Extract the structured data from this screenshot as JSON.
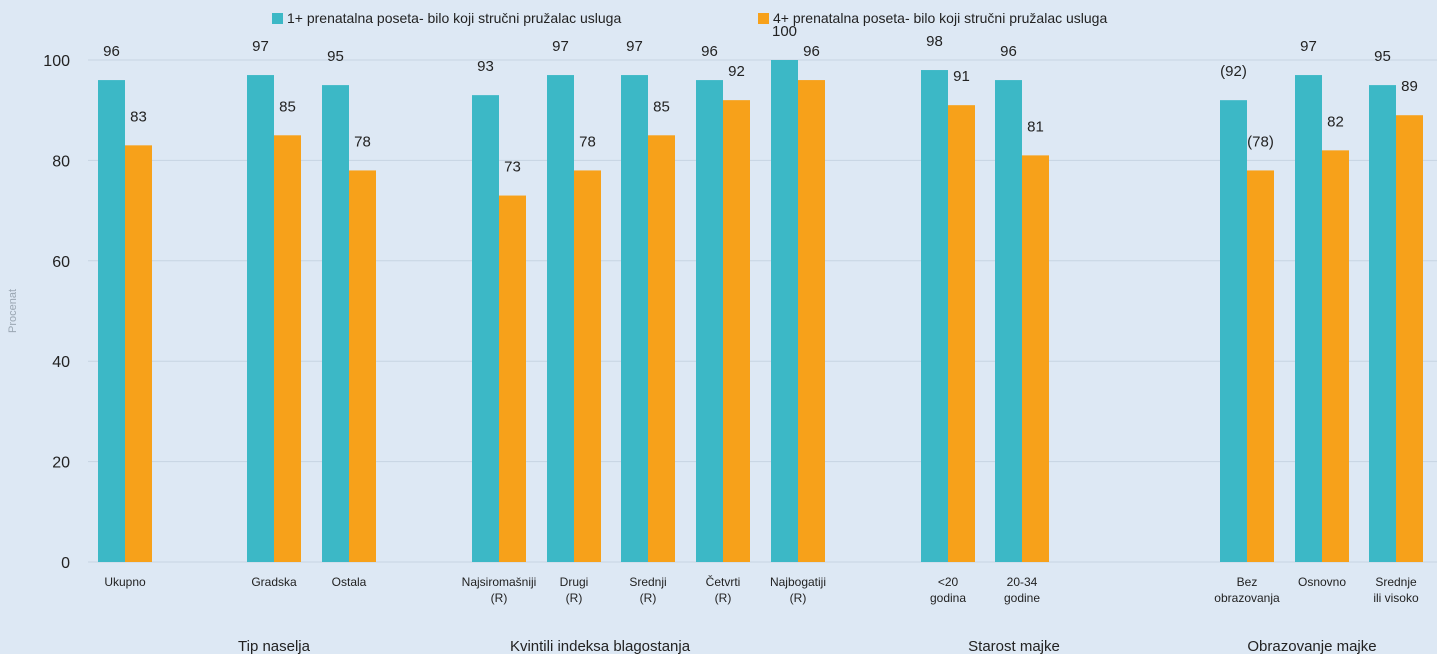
{
  "chart_data": {
    "type": "bar",
    "ylabel": "Procenat",
    "ylim": [
      0,
      100
    ],
    "yticks": [
      0,
      20,
      40,
      60,
      80,
      100
    ],
    "grid": true,
    "legend_position": "top",
    "colors": {
      "series1": "#3cb8c6",
      "series2": "#f7a11a",
      "grid": "#c6d4e2",
      "background": "#dde8f4"
    },
    "series": [
      {
        "name": "1+ prenatalna poseta- bilo koji stručni pružalac usluga"
      },
      {
        "name": "4+ prenatalna poseta- bilo koji stručni pružalac usluga"
      }
    ],
    "groups": [
      {
        "label": "",
        "categories": [
          {
            "label": [
              "Ukupno"
            ],
            "values": [
              96,
              83
            ],
            "labels": [
              "96",
              "83"
            ]
          }
        ]
      },
      {
        "label": "Tip naselja",
        "categories": [
          {
            "label": [
              "Gradska"
            ],
            "values": [
              97,
              85
            ],
            "labels": [
              "97",
              "85"
            ]
          },
          {
            "label": [
              "Ostala"
            ],
            "values": [
              95,
              78
            ],
            "labels": [
              "95",
              "78"
            ]
          }
        ]
      },
      {
        "label": "Kvintili indeksa blagostanja",
        "categories": [
          {
            "label": [
              "Najsiromašniji",
              "(R)"
            ],
            "values": [
              93,
              73
            ],
            "labels": [
              "93",
              "73"
            ]
          },
          {
            "label": [
              "Drugi",
              "(R)"
            ],
            "values": [
              97,
              78
            ],
            "labels": [
              "97",
              "78"
            ]
          },
          {
            "label": [
              "Srednji",
              "(R)"
            ],
            "values": [
              97,
              85
            ],
            "labels": [
              "97",
              "85"
            ]
          },
          {
            "label": [
              "Četvrti",
              "(R)"
            ],
            "values": [
              96,
              92
            ],
            "labels": [
              "96",
              "92"
            ]
          },
          {
            "label": [
              "Najbogatiji",
              "(R)"
            ],
            "values": [
              100,
              96
            ],
            "labels": [
              "100",
              "96"
            ]
          }
        ]
      },
      {
        "label": "Starost majke",
        "categories": [
          {
            "label": [
              "<20",
              "godina"
            ],
            "values": [
              98,
              91
            ],
            "labels": [
              "98",
              "91"
            ]
          },
          {
            "label": [
              "20-34",
              "godine"
            ],
            "values": [
              96,
              81
            ],
            "labels": [
              "96",
              "81"
            ]
          }
        ]
      },
      {
        "label": "Obrazovanje majke",
        "categories": [
          {
            "label": [
              "Bez",
              "obrazovanja"
            ],
            "values": [
              92,
              78
            ],
            "labels": [
              "(92)",
              "(78)"
            ]
          },
          {
            "label": [
              "Osnovno"
            ],
            "values": [
              97,
              82
            ],
            "labels": [
              "97",
              "82"
            ]
          },
          {
            "label": [
              "Srednje",
              "ili visoko"
            ],
            "values": [
              95,
              89
            ],
            "labels": [
              "95",
              "89"
            ]
          }
        ]
      }
    ]
  }
}
